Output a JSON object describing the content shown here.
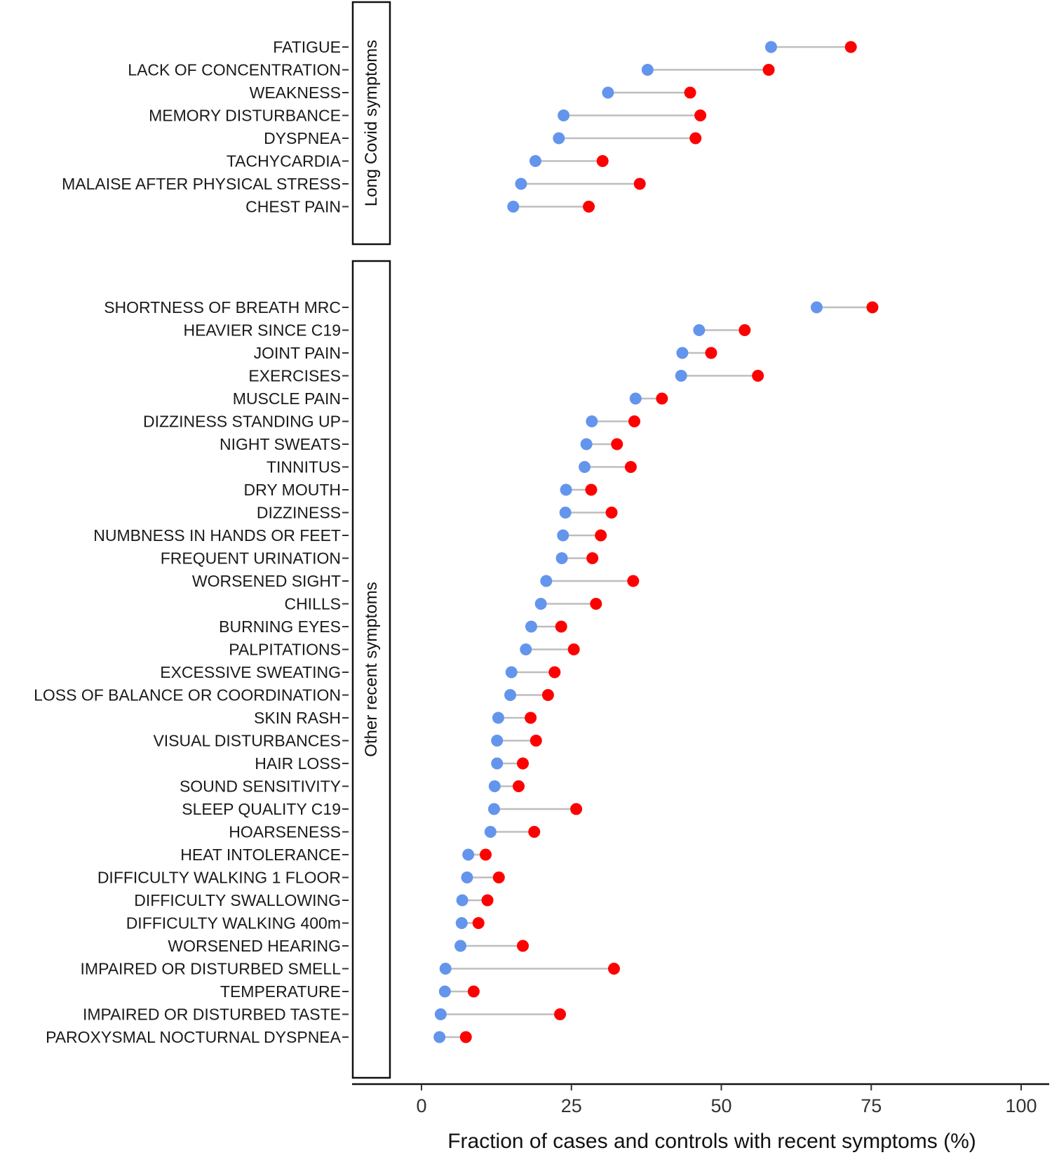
{
  "chart_data": {
    "type": "dumbbell",
    "xlabel": "Fraction of cases and controls with recent symptoms (%)",
    "xlim": [
      -11,
      104
    ],
    "xticks": [
      "0",
      "25",
      "50",
      "75",
      "100"
    ],
    "xtick_values": [
      0,
      25,
      50,
      75,
      100
    ],
    "colors": {
      "controls": "#6495ED",
      "cases": "#FF0000",
      "segment": "#BEBEBE"
    },
    "series_names": [
      "controls",
      "cases"
    ],
    "panels": [
      {
        "label": "Long Covid symptoms",
        "rows": [
          {
            "name": "FATIGUE",
            "controls": 58.3,
            "cases": 71.6
          },
          {
            "name": "LACK OF CONCENTRATION",
            "controls": 37.7,
            "cases": 57.9
          },
          {
            "name": "WEAKNESS",
            "controls": 31.1,
            "cases": 44.8
          },
          {
            "name": "MEMORY DISTURBANCE",
            "controls": 23.7,
            "cases": 46.5
          },
          {
            "name": "DYSPNEA",
            "controls": 22.9,
            "cases": 45.7
          },
          {
            "name": "TACHYCARDIA",
            "controls": 19.0,
            "cases": 30.2
          },
          {
            "name": "MALAISE AFTER PHYSICAL STRESS",
            "controls": 16.6,
            "cases": 36.4
          },
          {
            "name": "CHEST PAIN",
            "controls": 15.3,
            "cases": 27.9
          }
        ]
      },
      {
        "label": "Other recent symptoms",
        "rows": [
          {
            "name": "SHORTNESS OF BREATH MRC",
            "controls": 65.9,
            "cases": 75.2
          },
          {
            "name": "HEAVIER SINCE C19",
            "controls": 46.3,
            "cases": 53.9
          },
          {
            "name": "JOINT PAIN",
            "controls": 43.5,
            "cases": 48.3
          },
          {
            "name": "EXERCISES",
            "controls": 43.3,
            "cases": 56.1
          },
          {
            "name": "MUSCLE PAIN",
            "controls": 35.7,
            "cases": 40.1
          },
          {
            "name": "DIZZINESS STANDING UP",
            "controls": 28.4,
            "cases": 35.5
          },
          {
            "name": "NIGHT SWEATS",
            "controls": 27.5,
            "cases": 32.6
          },
          {
            "name": "TINNITUS",
            "controls": 27.2,
            "cases": 34.9
          },
          {
            "name": "DRY MOUTH",
            "controls": 24.1,
            "cases": 28.3
          },
          {
            "name": "DIZZINESS",
            "controls": 24.0,
            "cases": 31.7
          },
          {
            "name": "NUMBNESS IN HANDS OR FEET",
            "controls": 23.6,
            "cases": 29.9
          },
          {
            "name": "FREQUENT URINATION",
            "controls": 23.4,
            "cases": 28.5
          },
          {
            "name": "WORSENED SIGHT",
            "controls": 20.8,
            "cases": 35.3
          },
          {
            "name": "CHILLS",
            "controls": 19.9,
            "cases": 29.1
          },
          {
            "name": "BURNING EYES",
            "controls": 18.3,
            "cases": 23.3
          },
          {
            "name": "PALPITATIONS",
            "controls": 17.4,
            "cases": 25.4
          },
          {
            "name": "EXCESSIVE SWEATING",
            "controls": 15.0,
            "cases": 22.2
          },
          {
            "name": "LOSS OF BALANCE OR COORDINATION",
            "controls": 14.8,
            "cases": 21.1
          },
          {
            "name": "SKIN RASH",
            "controls": 12.8,
            "cases": 18.2
          },
          {
            "name": "VISUAL DISTURBANCES",
            "controls": 12.6,
            "cases": 19.1
          },
          {
            "name": "HAIR LOSS",
            "controls": 12.6,
            "cases": 16.9
          },
          {
            "name": "SOUND SENSITIVITY",
            "controls": 12.2,
            "cases": 16.2
          },
          {
            "name": "SLEEP QUALITY C19",
            "controls": 12.1,
            "cases": 25.8
          },
          {
            "name": "HOARSENESS",
            "controls": 11.5,
            "cases": 18.8
          },
          {
            "name": "HEAT INTOLERANCE",
            "controls": 7.8,
            "cases": 10.7
          },
          {
            "name": "DIFFICULTY WALKING 1 FLOOR",
            "controls": 7.6,
            "cases": 12.9
          },
          {
            "name": "DIFFICULTY SWALLOWING",
            "controls": 6.8,
            "cases": 11.0
          },
          {
            "name": "DIFFICULTY WALKING 400m",
            "controls": 6.7,
            "cases": 9.5
          },
          {
            "name": "WORSENED HEARING",
            "controls": 6.5,
            "cases": 16.9
          },
          {
            "name": "IMPAIRED OR DISTURBED SMELL",
            "controls": 4.0,
            "cases": 32.1
          },
          {
            "name": "TEMPERATURE",
            "controls": 3.9,
            "cases": 8.7
          },
          {
            "name": "IMPAIRED OR DISTURBED TASTE",
            "controls": 3.2,
            "cases": 23.1
          },
          {
            "name": "PAROXYSMAL NOCTURNAL DYSPNEA",
            "controls": 3.0,
            "cases": 7.4
          }
        ]
      }
    ]
  }
}
